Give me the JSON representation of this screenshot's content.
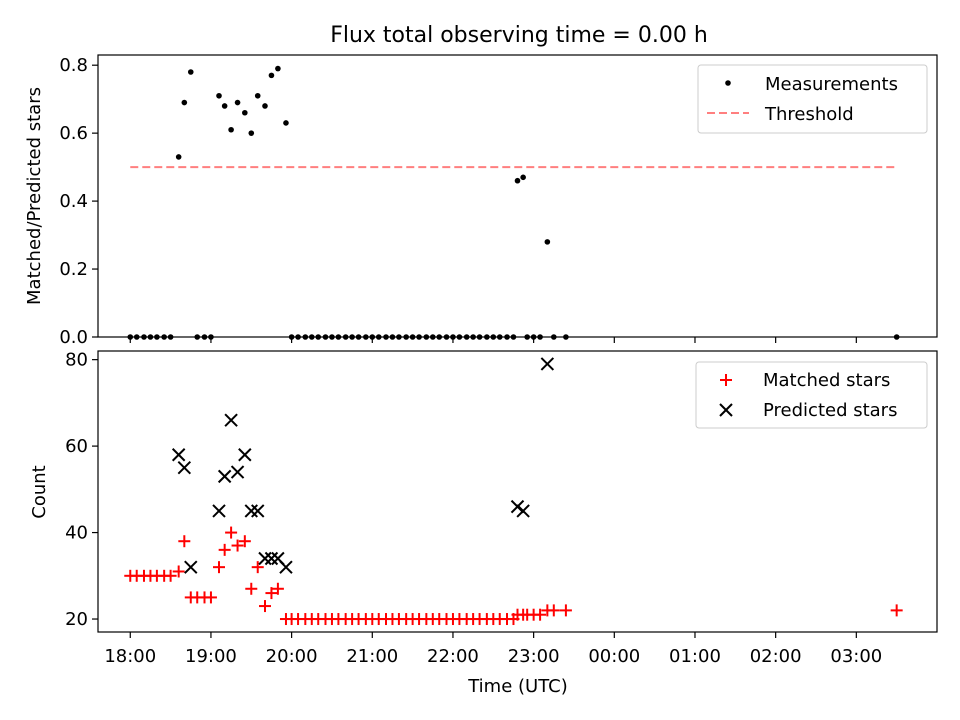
{
  "figure": {
    "title": "Flux total observing time = 0.00 h"
  },
  "chart_data": [
    {
      "type": "scatter",
      "panel": "top",
      "ylabel": "Matched/Predicted stars",
      "ylim": [
        0,
        0.83
      ],
      "yticks": [
        0.0,
        0.2,
        0.4,
        0.6,
        0.8
      ],
      "ytick_labels": [
        "0.0",
        "0.2",
        "0.4",
        "0.6",
        "0.8"
      ],
      "legend": {
        "placement": "top-right",
        "entries": [
          "Measurements",
          "Threshold"
        ]
      },
      "series": [
        {
          "name": "Measurements",
          "marker": "dot",
          "color": "#000000",
          "x": [
            18.0,
            18.08,
            18.17,
            18.25,
            18.33,
            18.42,
            18.5,
            18.6,
            18.67,
            18.75,
            18.83,
            18.92,
            19.0,
            19.1,
            19.17,
            19.25,
            19.33,
            19.42,
            19.5,
            19.58,
            19.67,
            19.75,
            19.83,
            19.93,
            20.0,
            20.08,
            20.17,
            20.25,
            20.33,
            20.42,
            20.5,
            20.58,
            20.67,
            20.75,
            20.83,
            20.92,
            21.0,
            21.08,
            21.17,
            21.25,
            21.33,
            21.42,
            21.5,
            21.58,
            21.67,
            21.75,
            21.83,
            21.92,
            22.0,
            22.08,
            22.17,
            22.25,
            22.33,
            22.42,
            22.5,
            22.58,
            22.67,
            22.75,
            22.8,
            22.87,
            22.92,
            23.0,
            23.08,
            23.17,
            23.25,
            23.4,
            27.5
          ],
          "y": [
            0,
            0,
            0,
            0,
            0,
            0,
            0,
            0.53,
            0.69,
            0.78,
            0,
            0,
            0,
            0.71,
            0.68,
            0.61,
            0.69,
            0.66,
            0.6,
            0.71,
            0.68,
            0.77,
            0.79,
            0.63,
            0,
            0,
            0,
            0,
            0,
            0,
            0,
            0,
            0,
            0,
            0,
            0,
            0,
            0,
            0,
            0,
            0,
            0,
            0,
            0,
            0,
            0,
            0,
            0,
            0,
            0,
            0,
            0,
            0,
            0,
            0,
            0,
            0,
            0,
            0.46,
            0.47,
            0,
            0,
            0,
            0.28,
            0,
            0,
            0
          ]
        },
        {
          "name": "Threshold",
          "style": "dashed",
          "color": "#ff7f7f",
          "x": [
            18.0,
            27.5
          ],
          "y": [
            0.5,
            0.5
          ]
        }
      ]
    },
    {
      "type": "scatter",
      "panel": "bottom",
      "xlabel": "Time (UTC)",
      "ylabel": "Count",
      "ylim": [
        17,
        82
      ],
      "yticks": [
        20,
        40,
        60,
        80
      ],
      "ytick_labels": [
        "20",
        "40",
        "60",
        "80"
      ],
      "xlim": [
        17.6,
        28.0
      ],
      "xticks": [
        18,
        19,
        20,
        21,
        22,
        23,
        24,
        25,
        26,
        27
      ],
      "xtick_labels": [
        "18:00",
        "19:00",
        "20:00",
        "21:00",
        "22:00",
        "23:00",
        "00:00",
        "01:00",
        "02:00",
        "03:00"
      ],
      "legend": {
        "placement": "top-right",
        "entries": [
          "Matched stars",
          "Predicted stars"
        ]
      },
      "series": [
        {
          "name": "Matched stars",
          "marker": "plus",
          "color": "#ff0000",
          "x": [
            18.0,
            18.08,
            18.17,
            18.25,
            18.33,
            18.42,
            18.5,
            18.6,
            18.67,
            18.75,
            18.83,
            18.92,
            19.0,
            19.1,
            19.17,
            19.25,
            19.33,
            19.42,
            19.5,
            19.58,
            19.67,
            19.75,
            19.83,
            19.93,
            20.0,
            20.08,
            20.17,
            20.25,
            20.33,
            20.42,
            20.5,
            20.58,
            20.67,
            20.75,
            20.83,
            20.92,
            21.0,
            21.08,
            21.17,
            21.25,
            21.33,
            21.42,
            21.5,
            21.58,
            21.67,
            21.75,
            21.83,
            21.92,
            22.0,
            22.08,
            22.17,
            22.25,
            22.33,
            22.42,
            22.5,
            22.58,
            22.67,
            22.75,
            22.8,
            22.87,
            22.92,
            23.0,
            23.08,
            23.17,
            23.25,
            23.4,
            27.5
          ],
          "y": [
            30,
            30,
            30,
            30,
            30,
            30,
            30,
            31,
            38,
            25,
            25,
            25,
            25,
            32,
            36,
            40,
            37,
            38,
            27,
            32,
            23,
            26,
            27,
            20,
            20,
            20,
            20,
            20,
            20,
            20,
            20,
            20,
            20,
            20,
            20,
            20,
            20,
            20,
            20,
            20,
            20,
            20,
            20,
            20,
            20,
            20,
            20,
            20,
            20,
            20,
            20,
            20,
            20,
            20,
            20,
            20,
            20,
            20,
            21,
            21,
            21,
            21,
            21,
            22,
            22,
            22,
            22
          ]
        },
        {
          "name": "Predicted stars",
          "marker": "x",
          "color": "#000000",
          "x": [
            18.6,
            18.67,
            18.75,
            19.1,
            19.17,
            19.25,
            19.33,
            19.42,
            19.5,
            19.58,
            19.67,
            19.75,
            19.83,
            19.93,
            22.8,
            22.87,
            23.17
          ],
          "y": [
            58,
            55,
            32,
            45,
            53,
            66,
            54,
            58,
            45,
            45,
            34,
            34,
            34,
            32,
            46,
            45,
            79
          ]
        }
      ]
    }
  ]
}
